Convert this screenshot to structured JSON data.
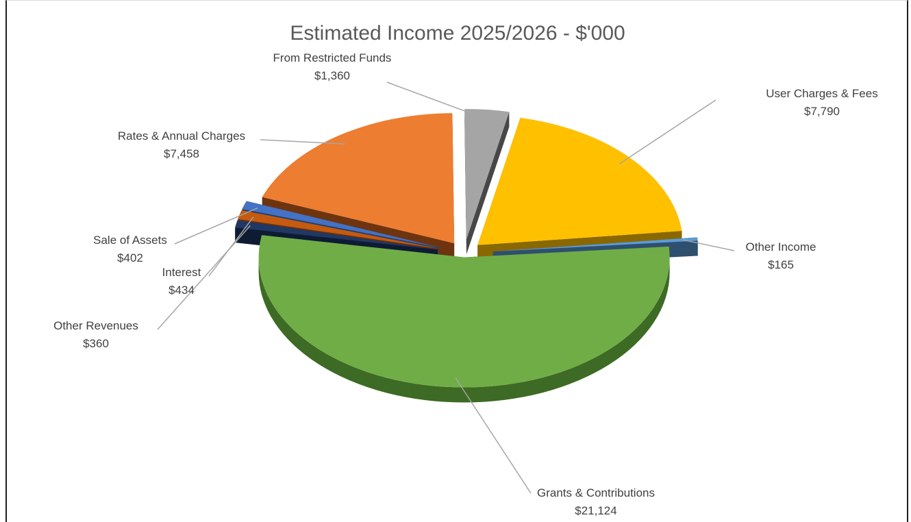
{
  "chart_data": {
    "type": "pie",
    "style": "3d-exploded",
    "title": "Estimated Income 2025/2026 - $'000",
    "slices": [
      {
        "name": "User Charges & Fees",
        "value": 7790,
        "value_label": "$7,790",
        "color": "#ffc000",
        "side_color": "#8a6800"
      },
      {
        "name": "Other Income",
        "value": 165,
        "value_label": "$165",
        "color": "#5b9bd5",
        "side_color": "#2e4f6e"
      },
      {
        "name": "Grants & Contributions",
        "value": 21124,
        "value_label": "$21,124",
        "color": "#70ad47",
        "side_color": "#3d6a24"
      },
      {
        "name": "Other Revenues",
        "value": 360,
        "value_label": "$360",
        "color": "#203864",
        "side_color": "#0e1b33"
      },
      {
        "name": "Interest",
        "value": 434,
        "value_label": "$434",
        "color": "#c55a11",
        "side_color": "#6e3109"
      },
      {
        "name": "Sale of Assets",
        "value": 402,
        "value_label": "$402",
        "color": "#4472c4",
        "side_color": "#23406e"
      },
      {
        "name": "Rates & Annual Charges",
        "value": 7458,
        "value_label": "$7,458",
        "color": "#ed7d31",
        "side_color": "#6e3410"
      },
      {
        "name": "From Restricted Funds",
        "value": 1360,
        "value_label": "$1,360",
        "color": "#a5a5a5",
        "side_color": "#474747"
      }
    ],
    "legend": "none",
    "data_labels": "outside-with-leader-lines"
  }
}
